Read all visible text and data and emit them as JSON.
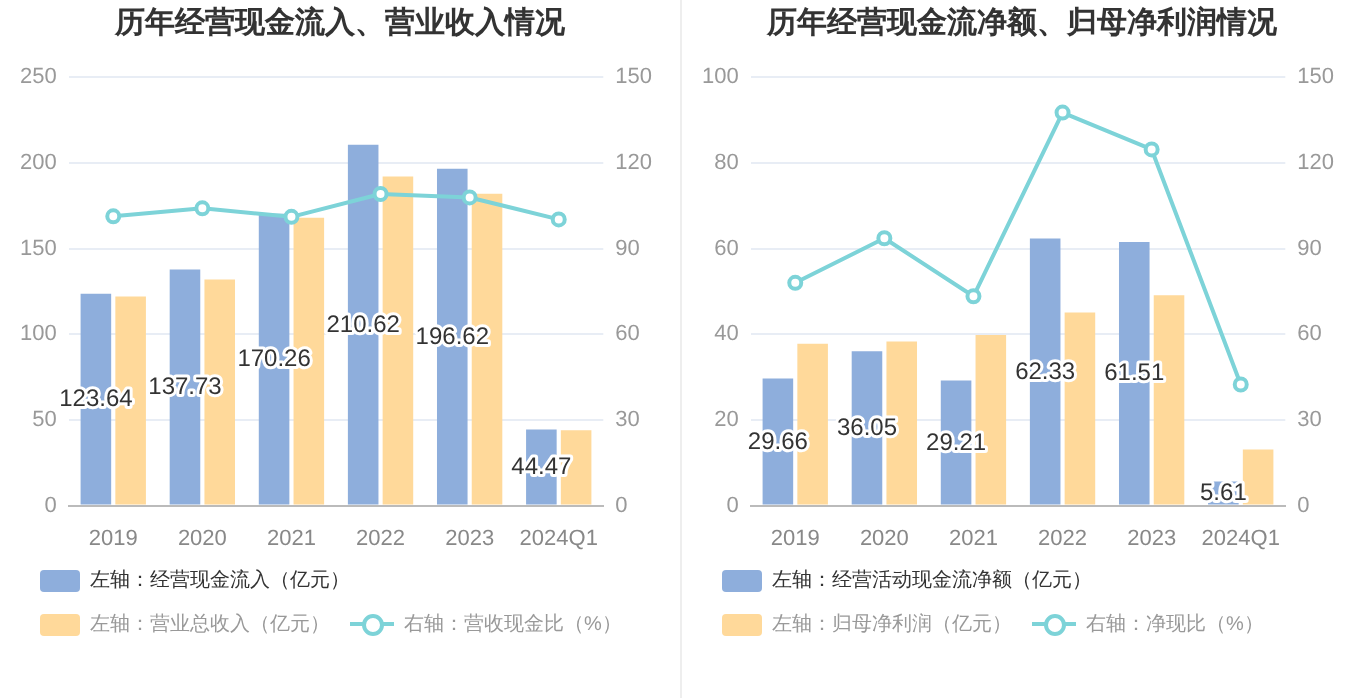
{
  "chart_data": [
    {
      "type": "bar",
      "title": "历年经营现金流入、营业收入情况",
      "categories": [
        "2019",
        "2020",
        "2021",
        "2022",
        "2023",
        "2024Q1"
      ],
      "series": [
        {
          "name": "左轴：经营现金流入（亿元）",
          "color": "#8eaedc",
          "values": [
            123.64,
            137.73,
            170.26,
            210.62,
            196.62,
            44.47
          ],
          "value_labels": [
            "123.64",
            "137.73",
            "170.26",
            "210.62",
            "196.62",
            "44.47"
          ]
        },
        {
          "name": "左轴：营业总收入（亿元）",
          "color": "#ffd99a",
          "values": [
            122,
            132,
            168,
            192,
            182,
            44
          ]
        },
        {
          "name": "右轴：营收现金比（%）",
          "color": "#7dd3d8",
          "type": "line",
          "axis": "y2",
          "values": [
            101.3,
            104.1,
            101.1,
            109.1,
            107.9,
            100.2
          ]
        }
      ],
      "ylim": [
        0,
        250
      ],
      "yticks": [
        0,
        50,
        100,
        150,
        200,
        250
      ],
      "y2lim": [
        0,
        150
      ],
      "y2ticks": [
        0,
        30,
        60,
        90,
        120,
        150
      ],
      "grid": "y",
      "legend": "bottom",
      "marker": "circle"
    },
    {
      "type": "bar",
      "title": "历年经营现金流净额、归母净利润情况",
      "categories": [
        "2019",
        "2020",
        "2021",
        "2022",
        "2023",
        "2024Q1"
      ],
      "series": [
        {
          "name": "左轴：经营活动现金流净额（亿元）",
          "color": "#8eaedc",
          "values": [
            29.66,
            36.05,
            29.21,
            62.33,
            61.51,
            5.61
          ],
          "value_labels": [
            "29.66",
            "36.05",
            "29.21",
            "62.33",
            "61.51",
            "5.61"
          ]
        },
        {
          "name": "左轴：归母净利润（亿元）",
          "color": "#ffd99a",
          "values": [
            37.8,
            38.3,
            39.8,
            45.1,
            49.1,
            13.1
          ]
        },
        {
          "name": "右轴：净现比（%）",
          "color": "#7dd3d8",
          "type": "line",
          "axis": "y2",
          "values": [
            78,
            93.6,
            73.3,
            137.6,
            124.7,
            42.4
          ]
        }
      ],
      "ylim": [
        0,
        100
      ],
      "yticks": [
        0,
        20,
        40,
        60,
        80,
        100
      ],
      "y2lim": [
        0,
        150
      ],
      "y2ticks": [
        0,
        30,
        60,
        90,
        120,
        150
      ],
      "grid": "y",
      "legend": "bottom",
      "marker": "circle"
    }
  ]
}
